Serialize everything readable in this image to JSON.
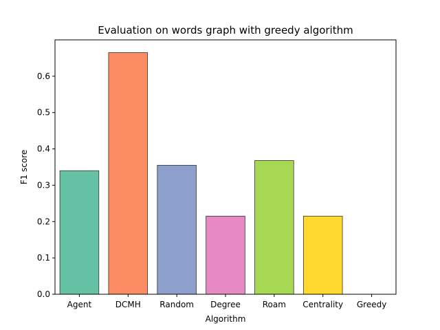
{
  "chart_data": {
    "type": "bar",
    "title": "Evaluation on words graph with greedy algorithm",
    "xlabel": "Algorithm",
    "ylabel": "F1 score",
    "categories": [
      "Agent",
      "DCMH",
      "Random",
      "Degree",
      "Roam",
      "Centrality",
      "Greedy"
    ],
    "values": [
      0.34,
      0.665,
      0.355,
      0.215,
      0.368,
      0.215,
      0.0
    ],
    "colors": [
      "#66c2a5",
      "#fc8d62",
      "#8da0cb",
      "#e78ac3",
      "#a6d854",
      "#ffd92f",
      "#e5c494"
    ],
    "ylim": [
      0,
      0.7
    ],
    "yticks": [
      "0.0",
      "0.1",
      "0.2",
      "0.3",
      "0.4",
      "0.5",
      "0.6"
    ],
    "grid": false,
    "legend": "none"
  }
}
